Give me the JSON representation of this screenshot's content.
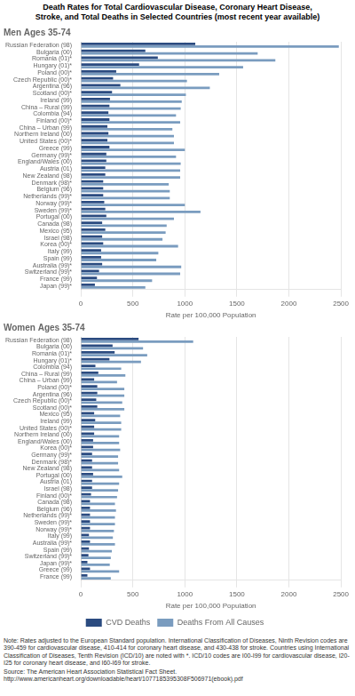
{
  "title": "Death Rates for Total Cardiovascular Disease, Coronary Heart Disease,\nStroke, and Total Deaths in Selected Countries (most recent year available)",
  "annotations": [
    "Note: Rates adjusted to the European Standard population. International Classification of Diseases, Ninth Revision codes are 390-459 for cardiovascular disease, 410-414 for coronary heart disease, and 430-438 for stroke. Countries using International Classification of Diseases, Tenth Revision (ICD/10) are noted with *. ICD/10 codes are I00-I99 for cardiovascular disease, I20-I25 for coronary heart disease, and I60-I69 for stroke.",
    "Source: The American Heart Association Statistical Fact Sheet. http://www.americanheart.org/downloadable/heart/1077185395308F506971(ebook).pdf"
  ],
  "chart_data": [
    {
      "type": "bar",
      "orientation": "horizontal",
      "subtitle": "Men Ages 35-74",
      "xlabel": "Rate per 100,000 Population",
      "categories": [
        "Russian Federation (98)",
        "Bulgaria (00)",
        "Romania (01)*",
        "Hungary (01)*",
        "Poland (00)*",
        "Czech Republic (00)*",
        "Argentina (96)",
        "Scotland (00)*",
        "Ireland (99)",
        "China – Rural (99)",
        "Colombia (94)",
        "Finland (00)*",
        "China – Urban (99)",
        "Northern Ireland (00)",
        "United States (00)*",
        "Greece (99)",
        "Germany (99)*",
        "England/Wales (00)",
        "Austria (01)",
        "New Zealand (98)",
        "Denmark (98)*",
        "Belgium (96)",
        "Netherlands (99)*",
        "Norway (99)*",
        "Sweden (99)*",
        "Portugal (00)",
        "Canada (98)",
        "Mexico (95)",
        "Israel (98)",
        "Korea (00)*",
        "Italy (99)",
        "Spain (99)",
        "Australia (99)*",
        "Switzerland (99)*",
        "France (99)",
        "Japan (99)*"
      ],
      "series": [
        {
          "name": "CVD Deaths",
          "color": "#2b4b80",
          "values": [
            1100,
            620,
            740,
            560,
            340,
            310,
            380,
            300,
            280,
            275,
            265,
            275,
            255,
            265,
            255,
            275,
            245,
            245,
            235,
            235,
            215,
            215,
            215,
            225,
            235,
            245,
            205,
            235,
            205,
            215,
            195,
            195,
            205,
            175,
            155,
            135
          ]
        },
        {
          "name": "Deaths From All Causes",
          "color": "#7a9cbf",
          "values": [
            2480,
            1700,
            1870,
            1560,
            1330,
            1020,
            1240,
            1010,
            970,
            960,
            915,
            955,
            880,
            895,
            895,
            1000,
            915,
            960,
            955,
            955,
            845,
            855,
            855,
            1000,
            1150,
            895,
            825,
            815,
            785,
            935,
            745,
            725,
            965,
            955,
            685,
            620
          ]
        }
      ],
      "xlim": [
        0,
        2500
      ],
      "xticks": [
        0,
        500,
        1000,
        1500,
        2000,
        2500
      ],
      "grid": true
    },
    {
      "type": "bar",
      "orientation": "horizontal",
      "subtitle": "Women Ages 35-74",
      "xlabel": "Rate per 100,000 Population",
      "categories": [
        "Russian Federation (98)",
        "Bulgaria (00)",
        "Romania (01)*",
        "Hungary (01)*",
        "Colombia (94)",
        "China – Rural (99)",
        "China – Urban (99)",
        "Poland (00)*",
        "Argentina (96)",
        "Czech Republic (00)*",
        "Scotland (00)*",
        "Mexico (95)",
        "Ireland (99)",
        "United States (00)*",
        "Northern Ireland (00)",
        "England/Wales (00)",
        "Korea (00)*",
        "Germany (99)*",
        "Denmark (98)*",
        "New Zealand (98)",
        "Portugal (00)",
        "Austria (01)",
        "Israel (98)",
        "Finland (00)*",
        "Canada (98)",
        "Belgium (96)",
        "Netherlands (99)*",
        "Sweden (99)*",
        "Norway (99)*",
        "Italy (99)",
        "Australia (99)*",
        "Spain (99)",
        "Switzerland (99)*",
        "Japan (99)*",
        "Greece (99)",
        "France (99)"
      ],
      "series": [
        {
          "name": "CVD Deaths",
          "color": "#2b4b80",
          "values": [
            555,
            305,
            325,
            275,
            140,
            168,
            128,
            158,
            158,
            148,
            158,
            128,
            138,
            128,
            128,
            118,
            118,
            108,
            108,
            108,
            118,
            108,
            108,
            98,
            88,
            88,
            88,
            88,
            88,
            78,
            88,
            78,
            73,
            63,
            88,
            63
          ]
        },
        {
          "name": "Deaths From All Causes",
          "color": "#7a9cbf",
          "values": [
            1080,
            598,
            638,
            578,
            388,
            428,
            348,
            418,
            418,
            398,
            418,
            378,
            388,
            388,
            368,
            368,
            378,
            358,
            358,
            368,
            398,
            368,
            358,
            348,
            328,
            338,
            328,
            328,
            318,
            308,
            328,
            298,
            288,
            278,
            368,
            288
          ]
        }
      ],
      "xlim": [
        0,
        2500
      ],
      "xticks": [
        0,
        500,
        1000,
        1500,
        2000,
        2500
      ],
      "grid": true,
      "legend": "bottom"
    }
  ]
}
